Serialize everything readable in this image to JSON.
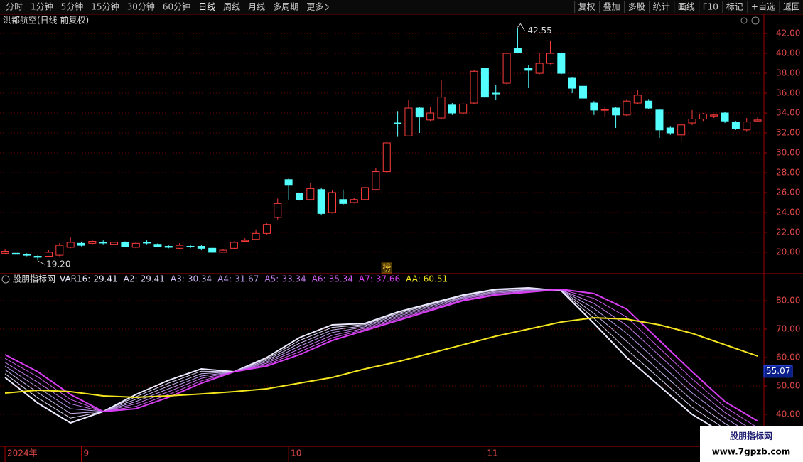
{
  "toolbar": {
    "left": [
      "分时",
      "1分钟",
      "5分钟",
      "15分钟",
      "30分钟",
      "60分钟",
      "日线",
      "周线",
      "月线",
      "多周期",
      "更多"
    ],
    "selected_index": 6,
    "right": [
      "复权",
      "叠加",
      "多股",
      "统计",
      "画线",
      "F10",
      "标记",
      "+自选",
      "返回"
    ]
  },
  "chart_data": [
    {
      "type": "candlestick",
      "title": "洪都航空(日线 前复权)",
      "up_color": "#ff3c3c",
      "down_color": "#54ffff",
      "open": [
        19.9,
        19.9,
        19.8,
        19.6,
        19.6,
        19.7,
        20.5,
        20.9,
        20.9,
        21.0,
        20.8,
        21.0,
        20.5,
        21.0,
        20.8,
        20.6,
        20.4,
        20.6,
        20.6,
        20.4,
        20.0,
        20.4,
        21.1,
        21.3,
        21.9,
        23.5,
        27.3,
        25.9,
        25.3,
        26.3,
        24.0,
        25.3,
        25.0,
        25.3,
        26.3,
        28.1,
        33.0,
        31.7,
        34.5,
        33.3,
        33.5,
        34.8,
        34.0,
        35.0,
        38.5,
        36.0,
        37.0,
        40.5,
        38.5,
        38.0,
        39.0,
        40.0,
        37.5,
        36.7,
        35.0,
        34.3,
        34.5,
        33.8,
        35.0,
        35.2,
        34.3,
        32.5,
        31.8,
        33.0,
        33.4,
        33.7,
        34.0,
        33.1,
        32.3,
        33.2
      ],
      "high": [
        20.3,
        20.0,
        19.9,
        19.7,
        20.2,
        20.9,
        21.5,
        21.0,
        21.3,
        21.2,
        21.1,
        21.1,
        21.0,
        21.2,
        20.9,
        20.7,
        20.9,
        20.8,
        20.7,
        20.5,
        20.3,
        21.1,
        21.4,
        22.3,
        22.9,
        25.4,
        27.4,
        26.0,
        27.0,
        26.5,
        26.2,
        26.3,
        25.5,
        26.8,
        28.5,
        31.1,
        34.2,
        35.3,
        34.6,
        34.6,
        37.3,
        35.0,
        35.0,
        38.3,
        38.6,
        36.8,
        40.1,
        42.55,
        38.8,
        40.0,
        41.3,
        40.1,
        37.6,
        36.8,
        35.2,
        34.6,
        34.6,
        35.4,
        36.3,
        35.4,
        34.4,
        32.7,
        33.0,
        34.3,
        34.0,
        33.9,
        34.1,
        33.2,
        33.5,
        33.6
      ],
      "low": [
        19.8,
        19.7,
        19.6,
        19.2,
        19.5,
        19.6,
        20.4,
        20.6,
        20.8,
        20.8,
        20.7,
        20.5,
        20.4,
        20.8,
        20.5,
        20.4,
        20.3,
        20.4,
        20.2,
        19.9,
        20.0,
        20.3,
        21.0,
        21.2,
        21.8,
        23.3,
        25.3,
        25.2,
        25.2,
        23.7,
        23.9,
        24.7,
        24.9,
        25.2,
        26.2,
        28.0,
        31.6,
        31.7,
        32.0,
        33.2,
        33.4,
        33.8,
        33.8,
        34.9,
        35.5,
        35.3,
        36.9,
        40.0,
        36.5,
        37.9,
        38.9,
        37.9,
        36.0,
        35.3,
        33.8,
        33.6,
        32.5,
        33.7,
        34.9,
        34.4,
        31.5,
        31.8,
        31.1,
        32.8,
        33.2,
        33.5,
        33.0,
        32.3,
        32.1,
        33.1
      ],
      "close": [
        20.1,
        19.8,
        19.7,
        19.5,
        20.0,
        20.7,
        21.0,
        20.7,
        21.1,
        20.95,
        21.0,
        20.6,
        20.9,
        20.95,
        20.6,
        20.5,
        20.7,
        20.55,
        20.4,
        20.0,
        20.2,
        21.0,
        21.2,
        21.9,
        22.8,
        24.9,
        26.8,
        25.3,
        26.4,
        23.9,
        26.0,
        24.9,
        25.3,
        26.5,
        28.1,
        31.0,
        32.9,
        34.5,
        33.6,
        34.0,
        35.6,
        34.0,
        34.9,
        38.2,
        35.6,
        35.95,
        40.0,
        40.1,
        38.3,
        39.0,
        40.0,
        38.0,
        36.5,
        35.5,
        34.3,
        34.35,
        33.8,
        35.2,
        35.8,
        34.5,
        32.3,
        32.0,
        32.8,
        33.4,
        33.9,
        33.8,
        33.2,
        32.4,
        33.1,
        33.3
      ],
      "high_label": "42.55",
      "low_label": "19.20",
      "marker": {
        "label": "榜",
        "index": 35
      },
      "xlim": [
        -0.46,
        69.58
      ],
      "ylim": [
        17.85,
        42.65
      ],
      "yticks": [
        {
          "value": 20,
          "label": "20.00"
        },
        {
          "value": 22,
          "label": "22.00"
        },
        {
          "value": 24,
          "label": "24.00"
        },
        {
          "value": 26,
          "label": "26.00"
        },
        {
          "value": 28,
          "label": "28.00"
        },
        {
          "value": 30,
          "label": "30.00"
        },
        {
          "value": 32,
          "label": "32.00"
        },
        {
          "value": 34,
          "label": "34.00"
        },
        {
          "value": 36,
          "label": "36.00"
        },
        {
          "value": 38,
          "label": "38.00"
        },
        {
          "value": 40,
          "label": "40.00"
        },
        {
          "value": 42,
          "label": "42.00"
        }
      ],
      "grid": true
    },
    {
      "type": "line",
      "title": "股朋指标网",
      "x": [
        0,
        3,
        6,
        9,
        12,
        15,
        18,
        21,
        24,
        27,
        30,
        33,
        36,
        39,
        42,
        45,
        48,
        51,
        54,
        57,
        60,
        63,
        66,
        69
      ],
      "series": [
        {
          "name": "VAR16:",
          "color": "#ecebff",
          "values": [
            53,
            44,
            37,
            41,
            47,
            52,
            56,
            55,
            60,
            67,
            71.5,
            72,
            76,
            79,
            82,
            84,
            84.5,
            83.5,
            72,
            60,
            50,
            40,
            33,
            29.41
          ]
        },
        {
          "name": "A2:",
          "color": "#dcd2f2",
          "values": [
            54.3,
            45.8,
            38.7,
            41,
            46.2,
            51,
            55.2,
            55,
            59.5,
            66,
            70.6,
            71.6,
            75.5,
            78.6,
            81.7,
            83.7,
            84.3,
            83.6,
            73.8,
            62.8,
            52.7,
            42.5,
            34.9,
            29.41
          ]
        },
        {
          "name": "A3:",
          "color": "#cab4ec",
          "values": [
            55.7,
            47.7,
            40.3,
            41,
            45.3,
            50,
            54.3,
            55,
            59,
            65,
            69.7,
            71.2,
            75,
            78.2,
            81.3,
            83.3,
            84,
            83.7,
            75.5,
            65.7,
            55.3,
            45,
            36.8,
            30.34
          ]
        },
        {
          "name": "A4:",
          "color": "#ba9aea",
          "values": [
            57,
            49.5,
            42,
            41,
            44.5,
            49,
            53.5,
            55,
            58.5,
            64,
            68.8,
            70.8,
            74.5,
            77.8,
            81,
            83,
            83.8,
            83.8,
            77.3,
            68.5,
            58,
            47.5,
            38.8,
            31.67
          ]
        },
        {
          "name": "A5:",
          "color": "#c47aea",
          "values": [
            58.3,
            51.3,
            43.7,
            41,
            43.7,
            48,
            52.7,
            55,
            58,
            63,
            67.8,
            70.3,
            74,
            77.3,
            80.7,
            82.7,
            83.5,
            83.8,
            79,
            71.3,
            60.7,
            50,
            40.7,
            33.34
          ]
        },
        {
          "name": "A6:",
          "color": "#cc5cec",
          "values": [
            59.7,
            53.2,
            45.3,
            41,
            42.8,
            47,
            51.8,
            55,
            57.5,
            62,
            66.9,
            69.9,
            73.5,
            76.9,
            80.3,
            82.3,
            83.3,
            83.9,
            80.8,
            74.2,
            63.3,
            52.5,
            42.6,
            35.34
          ]
        },
        {
          "name": "A7:",
          "color": "#d83cf2",
          "values": [
            61,
            55,
            47,
            41,
            42,
            46,
            51,
            55,
            57,
            61,
            66,
            69.5,
            73,
            76.5,
            80,
            82,
            83,
            84,
            82.5,
            77,
            66,
            55,
            44.5,
            37.66
          ]
        },
        {
          "name": "AA:",
          "color": "#f2e41e",
          "values": [
            47.5,
            48.5,
            48,
            46.5,
            46,
            46.5,
            47.2,
            48,
            49,
            51,
            53,
            56,
            58.5,
            61.5,
            64.5,
            67.5,
            70,
            72.5,
            74,
            73.5,
            71.5,
            68.5,
            64.5,
            60.51
          ]
        }
      ],
      "cursor_value": 55.07,
      "xlim": [
        -0.46,
        69.58
      ],
      "xticks": [
        {
          "value": 0,
          "label": "2024年"
        },
        {
          "value": 7,
          "label": "9"
        },
        {
          "value": 26,
          "label": "10"
        },
        {
          "value": 44,
          "label": "11"
        }
      ],
      "ylim": [
        28.75,
        89
      ],
      "yticks": [
        {
          "value": 40,
          "label": "40.00"
        },
        {
          "value": 50,
          "label": "50.00"
        },
        {
          "value": 60,
          "label": "60.00"
        },
        {
          "value": 70,
          "label": "70.00"
        },
        {
          "value": 80,
          "label": "80.00"
        }
      ],
      "grid": true
    }
  ],
  "watermark": {
    "title": "股朋指标网",
    "url": "www.7gpzb.com"
  }
}
